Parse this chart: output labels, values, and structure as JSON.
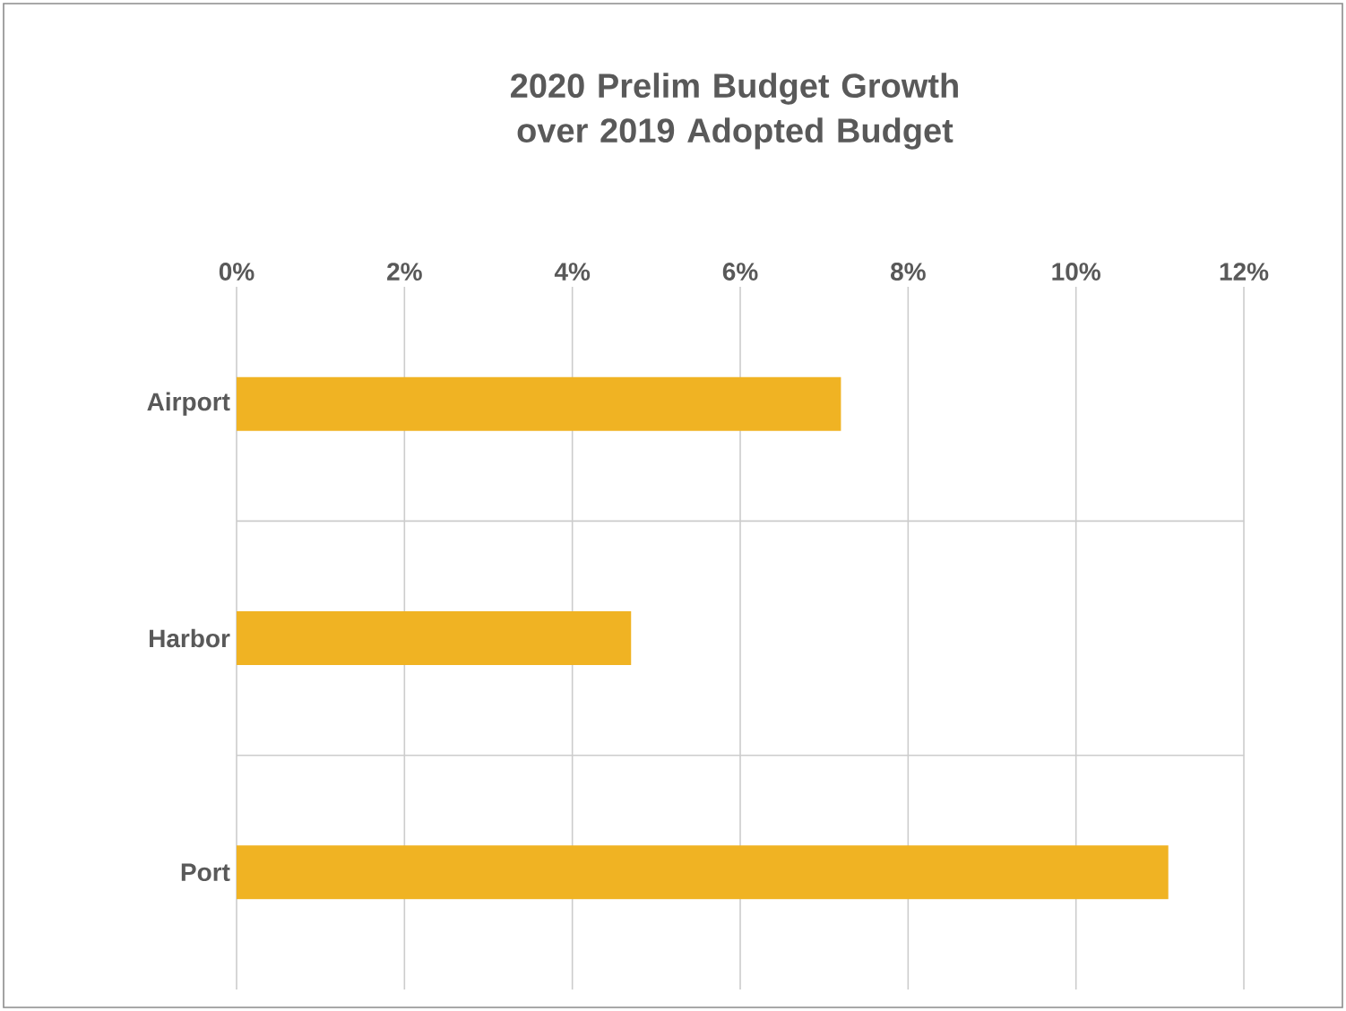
{
  "chart_data": {
    "type": "bar",
    "orientation": "horizontal",
    "title": "2020 Prelim Budget Growth over 2019 Adopted Budget",
    "categories": [
      "Airport",
      "Harbor",
      "Port"
    ],
    "values": [
      7.2,
      4.7,
      11.1
    ],
    "color": "#f0b323",
    "xlim": [
      0,
      12
    ],
    "xticks": [
      {
        "value": 0,
        "label": "0%"
      },
      {
        "value": 2,
        "label": "2%"
      },
      {
        "value": 4,
        "label": "4%"
      },
      {
        "value": 6,
        "label": "6%"
      },
      {
        "value": 8,
        "label": "8%"
      },
      {
        "value": 10,
        "label": "10%"
      },
      {
        "value": 12,
        "label": "12%"
      }
    ],
    "grid": true
  }
}
